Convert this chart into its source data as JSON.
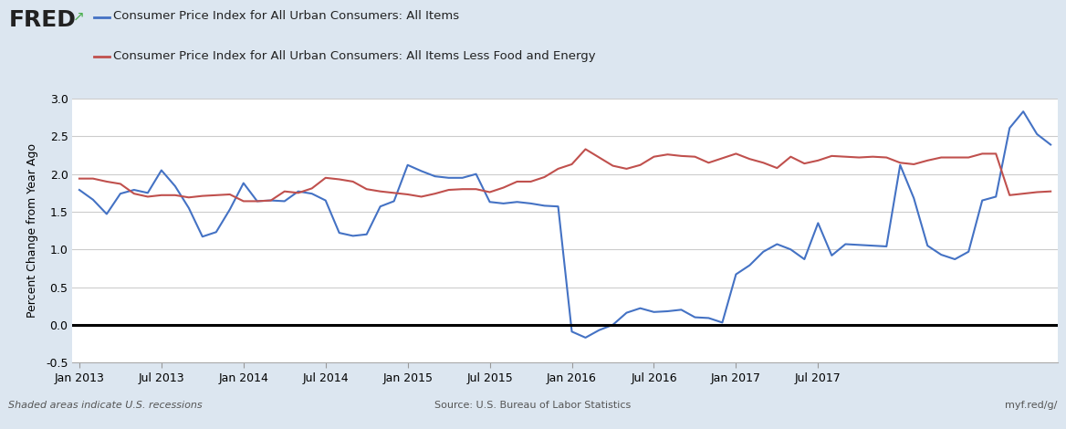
{
  "legend_line1": "Consumer Price Index for All Urban Consumers: All Items",
  "legend_line2": "Consumer Price Index for All Urban Consumers: All Items Less Food and Energy",
  "ylabel": "Percent Change from Year Ago",
  "footer_left": "Shaded areas indicate U.S. recessions",
  "footer_center": "Source: U.S. Bureau of Labor Statistics",
  "footer_right": "myf.red/g/",
  "background_color": "#dce6f0",
  "plot_bg_color": "#ffffff",
  "line1_color": "#4472c4",
  "line2_color": "#c0504d",
  "ylim": [
    -0.5,
    3.0
  ],
  "yticks": [
    -0.5,
    0.0,
    0.5,
    1.0,
    1.5,
    2.0,
    2.5,
    3.0
  ],
  "blue_values": [
    1.79,
    1.66,
    1.47,
    1.74,
    1.79,
    1.75,
    2.05,
    1.84,
    1.55,
    1.17,
    1.23,
    1.53,
    1.88,
    1.64,
    1.65,
    1.64,
    1.77,
    1.74,
    1.65,
    1.22,
    1.18,
    1.2,
    1.57,
    1.64,
    2.12,
    2.04,
    1.97,
    1.95,
    1.95,
    2.0,
    1.63,
    1.61,
    1.63,
    1.61,
    1.58,
    1.57,
    -0.09,
    -0.17,
    -0.07,
    0.0,
    0.16,
    0.22,
    0.17,
    0.18,
    0.2,
    0.1,
    0.09,
    0.03,
    0.67,
    0.79,
    0.97,
    1.07,
    1.0,
    0.87,
    1.35,
    0.92,
    1.07,
    1.06,
    1.05,
    1.04,
    2.12,
    1.68,
    1.05,
    0.93,
    0.87,
    0.97,
    1.65,
    1.7,
    2.61,
    2.83,
    2.53,
    2.39
  ],
  "red_values": [
    1.94,
    1.94,
    1.9,
    1.87,
    1.74,
    1.7,
    1.72,
    1.72,
    1.69,
    1.71,
    1.72,
    1.73,
    1.64,
    1.64,
    1.65,
    1.77,
    1.75,
    1.81,
    1.95,
    1.93,
    1.9,
    1.8,
    1.77,
    1.75,
    1.73,
    1.7,
    1.74,
    1.79,
    1.8,
    1.8,
    1.76,
    1.82,
    1.9,
    1.9,
    1.96,
    2.07,
    2.13,
    2.33,
    2.22,
    2.11,
    2.07,
    2.12,
    2.23,
    2.26,
    2.24,
    2.23,
    2.15,
    2.21,
    2.27,
    2.2,
    2.15,
    2.08,
    2.23,
    2.14,
    2.18,
    2.24,
    2.23,
    2.22,
    2.23,
    2.22,
    2.15,
    2.13,
    2.18,
    2.22,
    2.22,
    2.22,
    2.27,
    2.27,
    1.72,
    1.74,
    1.76,
    1.77
  ],
  "xtick_labels": [
    "Jan 2013",
    "Jul 2013",
    "Jan 2014",
    "Jul 2014",
    "Jan 2015",
    "Jul 2015",
    "Jan 2016",
    "Jul 2016",
    "Jan 2017",
    "Jul 2017"
  ],
  "xtick_positions": [
    0,
    6,
    12,
    18,
    24,
    30,
    36,
    42,
    48,
    54
  ]
}
